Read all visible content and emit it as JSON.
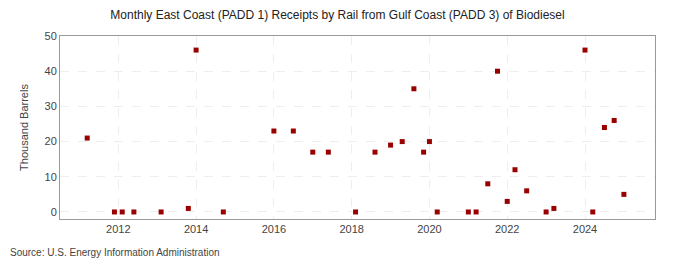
{
  "chart_data": {
    "type": "scatter",
    "title": "Monthly East Coast (PADD 1) Receipts by Rail from Gulf Coast (PADD 3) of Biodiesel",
    "ylabel": "Thousand Barrels",
    "source": "Source: U.S. Energy Information Administration",
    "color": "#990000",
    "marker": "square",
    "grid": true,
    "xlim": [
      2010.5,
      2025.8
    ],
    "xticks": [
      2012,
      2014,
      2016,
      2018,
      2020,
      2022,
      2024
    ],
    "ylim": [
      -2,
      50
    ],
    "yticks": [
      0,
      10,
      20,
      30,
      40,
      50
    ],
    "x": [
      2011.2,
      2011.9,
      2012.1,
      2012.4,
      2013.1,
      2013.8,
      2014.0,
      2014.7,
      2016.0,
      2016.5,
      2017.0,
      2017.4,
      2018.1,
      2018.6,
      2019.0,
      2019.3,
      2019.6,
      2019.85,
      2020.0,
      2020.2,
      2021.0,
      2021.2,
      2021.5,
      2021.75,
      2022.0,
      2022.2,
      2022.5,
      2023.0,
      2023.2,
      2024.0,
      2024.2,
      2024.5,
      2024.75,
      2025.0
    ],
    "values": [
      21,
      0,
      0,
      0,
      0,
      1,
      46,
      0,
      23,
      23,
      17,
      17,
      0,
      17,
      19,
      20,
      35,
      17,
      20,
      0,
      0,
      0,
      8,
      40,
      3,
      12,
      6,
      0,
      1,
      46,
      0,
      24,
      26,
      5
    ]
  }
}
